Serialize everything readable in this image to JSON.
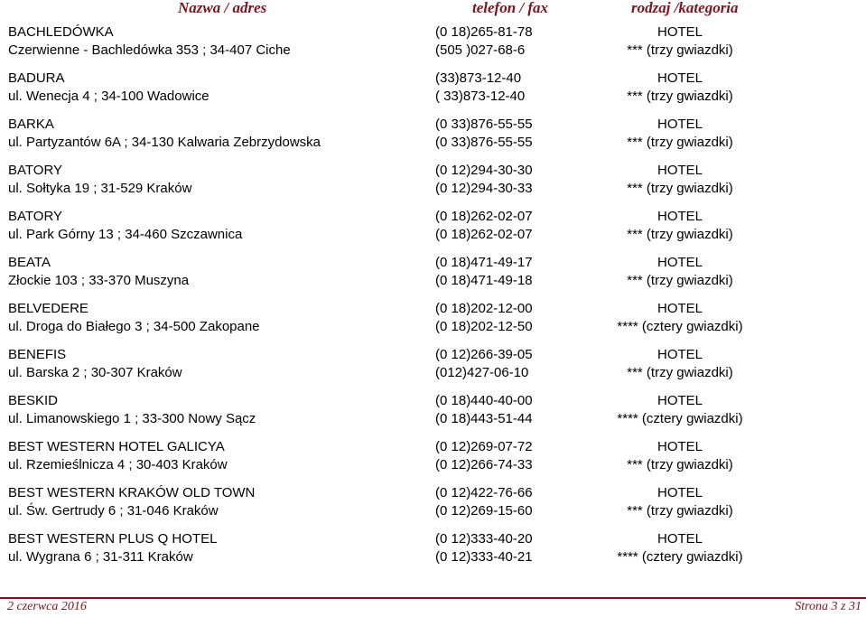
{
  "header": {
    "name": "Nazwa / adres",
    "phone": "telefon / fax",
    "category": "rodzaj /kategoria"
  },
  "entries": [
    {
      "name": "BACHLEDÓWKA",
      "address": "Czerwienne - Bachledówka 353 ; 34-407 Ciche",
      "phone1": "(0 18)265-81-78",
      "phone2": "(505 )027-68-6",
      "type": "HOTEL",
      "category": "*** (trzy gwiazdki)"
    },
    {
      "name": "BADURA",
      "address": "ul. Wenecja 4 ; 34-100 Wadowice",
      "phone1": "(33)873-12-40",
      "phone2": "( 33)873-12-40",
      "type": "HOTEL",
      "category": "*** (trzy gwiazdki)"
    },
    {
      "name": "BARKA",
      "address": "ul. Partyzantów 6A ; 34-130 Kalwaria Zebrzydowska",
      "phone1": "(0 33)876-55-55",
      "phone2": "(0 33)876-55-55",
      "type": "HOTEL",
      "category": "*** (trzy gwiazdki)"
    },
    {
      "name": "BATORY",
      "address": "ul. Sołtyka 19 ; 31-529 Kraków",
      "phone1": "(0 12)294-30-30",
      "phone2": "(0 12)294-30-33",
      "type": "HOTEL",
      "category": "*** (trzy gwiazdki)"
    },
    {
      "name": "BATORY",
      "address": "ul. Park Górny 13 ; 34-460 Szczawnica",
      "phone1": "(0 18)262-02-07",
      "phone2": "(0 18)262-02-07",
      "type": "HOTEL",
      "category": "*** (trzy gwiazdki)"
    },
    {
      "name": "BEATA",
      "address": "Złockie 103 ; 33-370 Muszyna",
      "phone1": "(0 18)471-49-17",
      "phone2": "(0 18)471-49-18",
      "type": "HOTEL",
      "category": "*** (trzy gwiazdki)"
    },
    {
      "name": "BELVEDERE",
      "address": "ul. Droga do Białego 3 ; 34-500 Zakopane",
      "phone1": "(0 18)202-12-00",
      "phone2": "(0 18)202-12-50",
      "type": "HOTEL",
      "category": "**** (cztery gwiazdki)"
    },
    {
      "name": "BENEFIS",
      "address": "ul. Barska 2 ; 30-307 Kraków",
      "phone1": "(0 12)266-39-05",
      "phone2": "(012)427-06-10",
      "type": "HOTEL",
      "category": "*** (trzy gwiazdki)"
    },
    {
      "name": "BESKID",
      "address": "ul. Limanowskiego 1 ; 33-300 Nowy Sącz",
      "phone1": "(0 18)440-40-00",
      "phone2": "(0 18)443-51-44",
      "type": "HOTEL",
      "category": "**** (cztery gwiazdki)"
    },
    {
      "name": "BEST WESTERN HOTEL GALICYA",
      "address": "ul. Rzemieślnicza 4 ; 30-403 Kraków",
      "phone1": "(0 12)269-07-72",
      "phone2": "(0 12)266-74-33",
      "type": "HOTEL",
      "category": "*** (trzy gwiazdki)"
    },
    {
      "name": "BEST WESTERN KRAKÓW OLD TOWN",
      "address": "ul. Św. Gertrudy 6 ; 31-046 Kraków",
      "phone1": "(0 12)422-76-66",
      "phone2": "(0 12)269-15-60",
      "type": "HOTEL",
      "category": "*** (trzy gwiazdki)"
    },
    {
      "name": "BEST WESTERN PLUS Q HOTEL",
      "address": "ul. Wygrana 6 ; 31-311 Kraków",
      "phone1": "(0 12)333-40-20",
      "phone2": "(0 12)333-40-21",
      "type": "HOTEL",
      "category": "**** (cztery gwiazdki)"
    }
  ],
  "footer": {
    "date": "2 czerwca 2016",
    "page": "Strona 3 z 31"
  }
}
